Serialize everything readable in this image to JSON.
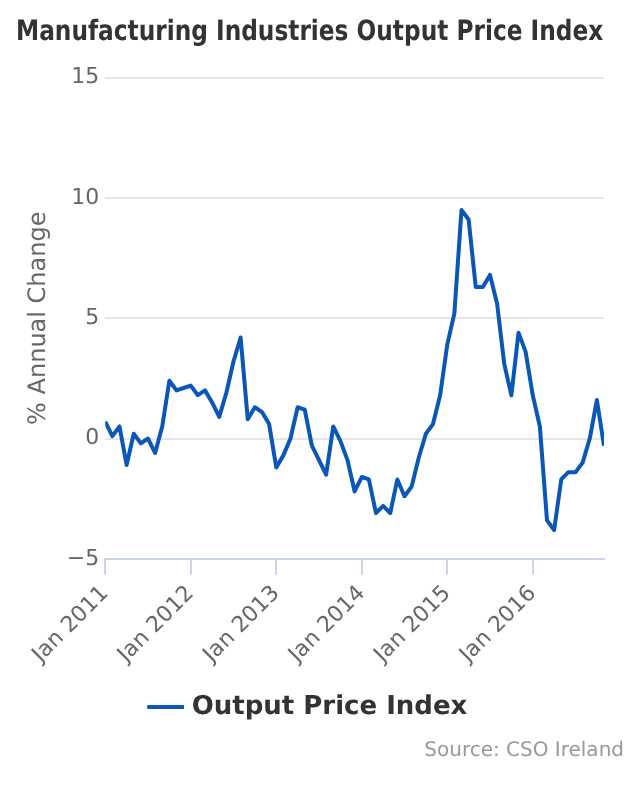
{
  "chart_data": {
    "type": "line",
    "title": "Manufacturing Industries Output Price Index",
    "ylabel": "% Annual Change",
    "x": [
      "2011-01",
      "2011-02",
      "2011-03",
      "2011-04",
      "2011-05",
      "2011-06",
      "2011-07",
      "2011-08",
      "2011-09",
      "2011-10",
      "2011-11",
      "2011-12",
      "2012-01",
      "2012-02",
      "2012-03",
      "2012-04",
      "2012-05",
      "2012-06",
      "2012-07",
      "2012-08",
      "2012-09",
      "2012-10",
      "2012-11",
      "2012-12",
      "2013-01",
      "2013-02",
      "2013-03",
      "2013-04",
      "2013-05",
      "2013-06",
      "2013-07",
      "2013-08",
      "2013-09",
      "2013-10",
      "2013-11",
      "2013-12",
      "2014-01",
      "2014-02",
      "2014-03",
      "2014-04",
      "2014-05",
      "2014-06",
      "2014-07",
      "2014-08",
      "2014-09",
      "2014-10",
      "2014-11",
      "2014-12",
      "2015-01",
      "2015-02",
      "2015-03",
      "2015-04",
      "2015-05",
      "2015-06",
      "2015-07",
      "2015-08",
      "2015-09",
      "2015-10",
      "2015-11",
      "2015-12",
      "2016-01",
      "2016-02",
      "2016-03",
      "2016-04",
      "2016-05",
      "2016-06",
      "2016-07",
      "2016-08",
      "2016-09",
      "2016-10",
      "2016-11"
    ],
    "series": [
      {
        "name": "Output Price Index",
        "color": "#0a57b8",
        "values": [
          0.7,
          0.1,
          0.5,
          -1.1,
          0.2,
          -0.2,
          0,
          -0.6,
          0.5,
          2.4,
          2.0,
          2.1,
          2.2,
          1.8,
          2.0,
          1.5,
          0.9,
          1.9,
          3.2,
          4.2,
          0.8,
          1.3,
          1.1,
          0.6,
          -1.2,
          -0.7,
          0,
          1.3,
          1.2,
          -0.3,
          -0.9,
          -1.5,
          0.5,
          -0.1,
          -0.9,
          -2.2,
          -1.6,
          -1.7,
          -3.1,
          -2.8,
          -3.1,
          -1.7,
          -2.4,
          -2.0,
          -0.8,
          0.2,
          0.6,
          1.8,
          3.9,
          5.2,
          9.5,
          9.1,
          6.3,
          6.3,
          6.8,
          5.6,
          3.1,
          1.8,
          4.4,
          3.6,
          1.8,
          0.5,
          -3.4,
          -3.8,
          -1.7,
          -1.4,
          -1.4,
          -1.0,
          0,
          1.6,
          -0.3
        ]
      }
    ],
    "xlim": [
      "2011-01",
      "2016-11"
    ],
    "xticks": [
      {
        "value": "2011-01",
        "label": "Jan 2011"
      },
      {
        "value": "2012-01",
        "label": "Jan 2012"
      },
      {
        "value": "2013-01",
        "label": "Jan 2013"
      },
      {
        "value": "2014-01",
        "label": "Jan 2014"
      },
      {
        "value": "2015-01",
        "label": "Jan 2015"
      },
      {
        "value": "2016-01",
        "label": "Jan 2016"
      }
    ],
    "ylim": [
      -5,
      15
    ],
    "yticks": [
      {
        "value": -5,
        "label": "−5"
      },
      0,
      5,
      10,
      15
    ],
    "grid": "y",
    "legend": "bottom",
    "marker": "none",
    "line_style": "solid",
    "annotations": [
      "Source: CSO Ireland"
    ]
  }
}
